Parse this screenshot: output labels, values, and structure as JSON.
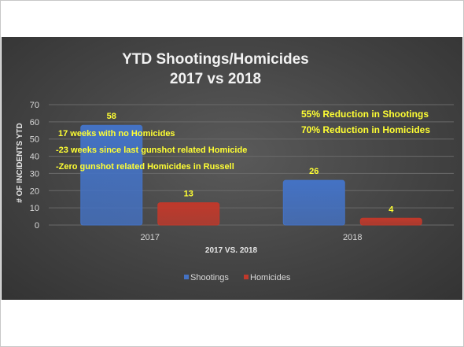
{
  "chart_data": {
    "type": "bar",
    "title_lines": [
      "YTD Shootings/Homicides",
      "2017 vs 2018"
    ],
    "xlabel": "2017 VS. 2018",
    "ylabel": "# OF INCIDENTS YTD",
    "ylim": [
      0,
      70
    ],
    "yticks": [
      0,
      10,
      20,
      30,
      40,
      50,
      60,
      70
    ],
    "grid": true,
    "legend_position": "bottom",
    "categories": [
      "2017",
      "2018"
    ],
    "series": [
      {
        "name": "Shootings",
        "values": [
          58,
          26
        ],
        "color": "#4472c4"
      },
      {
        "name": "Homicides",
        "values": [
          13,
          4
        ],
        "color": "#c0392b"
      }
    ],
    "annotations": {
      "reduction": [
        "55% Reduction in Shootings",
        "70% Reduction in Homicides"
      ],
      "notes": [
        "17 weeks with no Homicides",
        "-23 weeks since last gunshot related Homicide",
        "-Zero gunshot related Homicides in Russell"
      ]
    }
  }
}
